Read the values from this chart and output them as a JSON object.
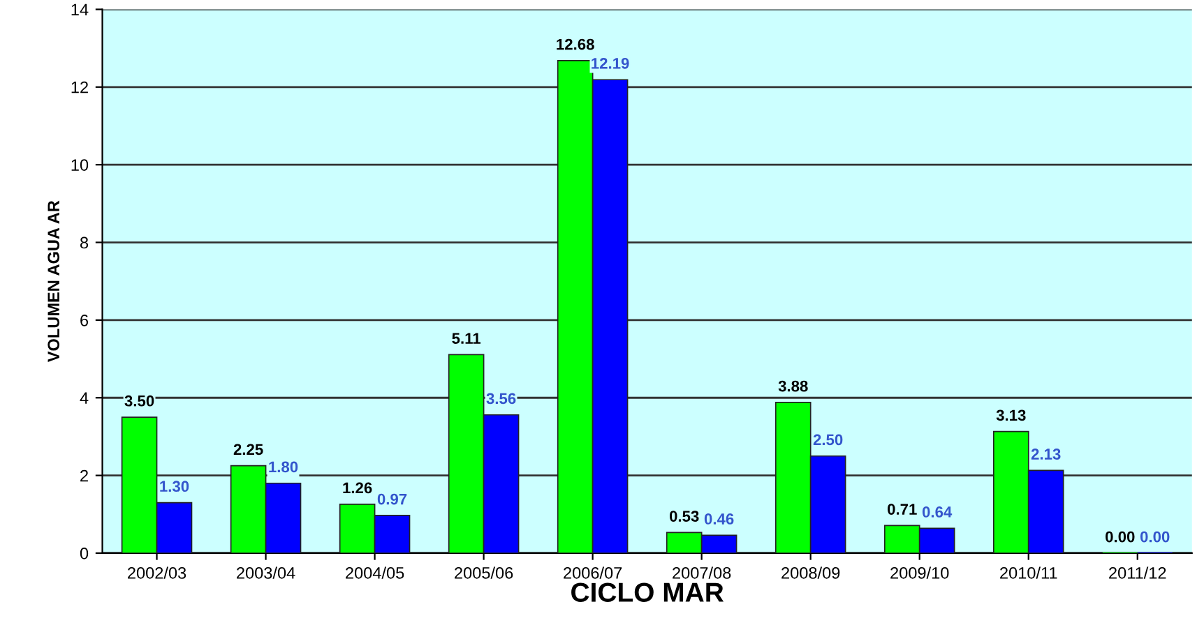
{
  "chart_data": {
    "type": "bar",
    "xlabel": "CICLO MAR",
    "ylabel": "VOLUMEN AGUA AR",
    "categories": [
      "2002/03",
      "2003/04",
      "2004/05",
      "2005/06",
      "2006/07",
      "2007/08",
      "2008/09",
      "2009/10",
      "2010/11",
      "2011/12"
    ],
    "series": [
      {
        "color": "#00ff00",
        "values": [
          3.5,
          2.25,
          1.26,
          5.11,
          12.68,
          0.53,
          3.88,
          0.71,
          3.13,
          0.0
        ],
        "value_labels": [
          "3.50",
          "2.25",
          "1.26",
          "5.11",
          "12.68",
          "0.53",
          "3.88",
          "0.71",
          "3.13",
          "0.00"
        ]
      },
      {
        "color": "#0000ff",
        "values": [
          1.3,
          1.8,
          0.97,
          3.56,
          12.19,
          0.46,
          2.5,
          0.64,
          2.13,
          0.0
        ],
        "value_labels": [
          "1.30",
          "1.80",
          "0.97",
          "3.56",
          "12.19",
          "0.46",
          "2.50",
          "0.64",
          "2.13",
          "0.00"
        ]
      }
    ],
    "ylim": [
      0,
      14
    ],
    "yticks": [
      0,
      2,
      4,
      6,
      8,
      10,
      12,
      14
    ],
    "grid": "y",
    "legend": false
  }
}
